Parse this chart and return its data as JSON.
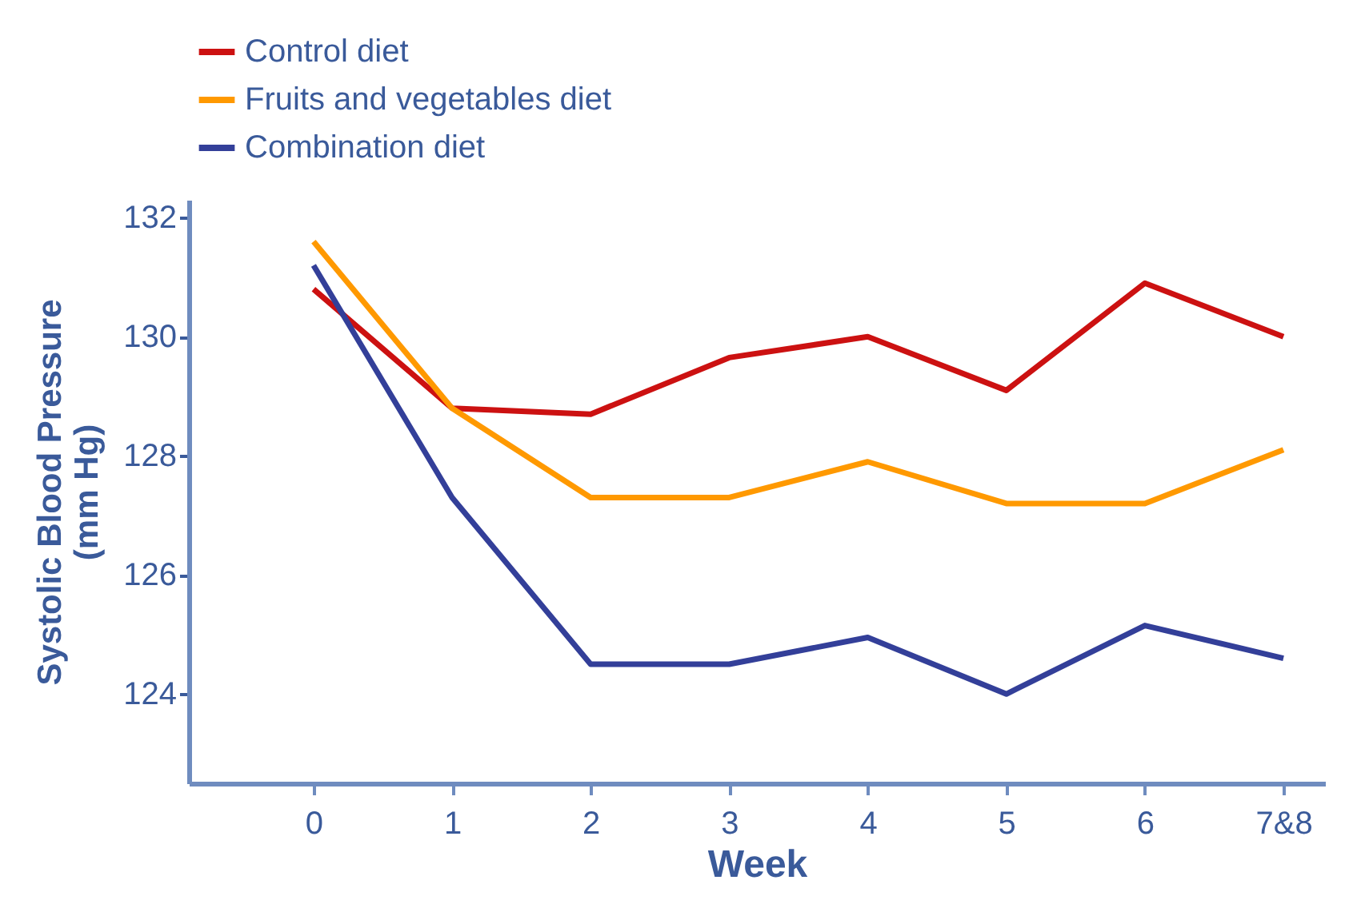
{
  "chart_data": {
    "type": "line",
    "xlabel": "Week",
    "ylabel": "Systolic Blood Pressure (mm Hg)",
    "categories": [
      "0",
      "1",
      "2",
      "3",
      "4",
      "5",
      "6",
      "7&8"
    ],
    "series": [
      {
        "name": "Control diet",
        "color": "#cc1111",
        "values": [
          130.8,
          128.8,
          128.7,
          129.65,
          130.0,
          129.1,
          130.9,
          130.0
        ]
      },
      {
        "name": "Fruits and vegetables diet",
        "color": "#ff9900",
        "values": [
          131.6,
          128.8,
          127.3,
          127.3,
          127.9,
          127.2,
          127.2,
          128.1
        ]
      },
      {
        "name": "Combination diet",
        "color": "#333f99",
        "values": [
          131.2,
          127.3,
          124.5,
          124.5,
          124.95,
          124.0,
          125.15,
          124.6
        ]
      }
    ],
    "ylim": [
      122.5,
      132.3
    ],
    "yticks": [
      124,
      126,
      128,
      130,
      132
    ],
    "grid": false,
    "legend": "top",
    "marker": "none",
    "line_style": "solid"
  }
}
